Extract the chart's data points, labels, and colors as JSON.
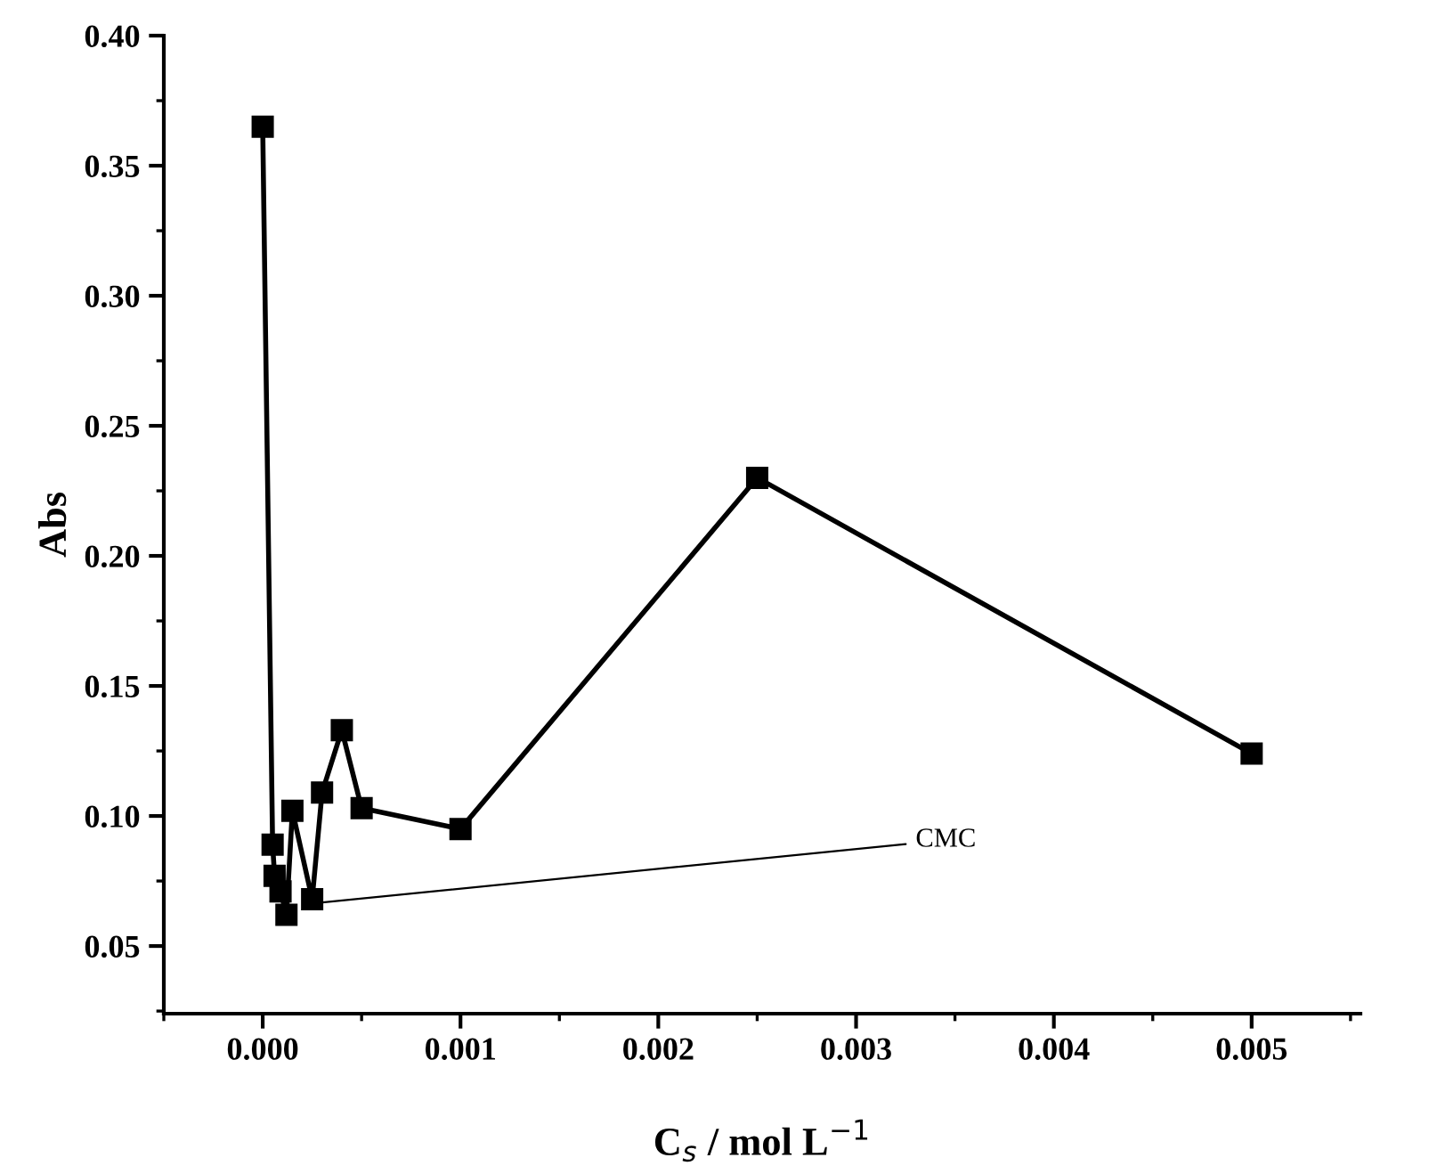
{
  "chart_data": {
    "type": "line",
    "xlabel": "C$_{s}$ / mol L$^{−1}$",
    "ylabel": "Abs",
    "x": [
      0,
      5e-05,
      6e-05,
      9e-05,
      0.00012,
      0.00015,
      0.00025,
      0.0003,
      0.0004,
      0.0005,
      0.001,
      0.0025,
      0.005
    ],
    "series": [
      {
        "color": "#000000",
        "values": [
          0.365,
          0.089,
          0.077,
          0.071,
          0.062,
          0.102,
          0.068,
          0.109,
          0.133,
          0.103,
          0.095,
          0.23,
          0.124
        ]
      }
    ],
    "xlim": [
      -0.0005,
      0.00555
    ],
    "ylim": [
      0.024,
      0.4
    ],
    "xticks": [
      {
        "value": 0,
        "label": "0.000"
      },
      {
        "value": 0.001,
        "label": "0.001"
      },
      {
        "value": 0.002,
        "label": "0.002"
      },
      {
        "value": 0.003,
        "label": "0.003"
      },
      {
        "value": 0.004,
        "label": "0.004"
      },
      {
        "value": 0.005,
        "label": "0.005"
      }
    ],
    "yticks": [
      {
        "value": 0.05,
        "label": "0.05"
      },
      {
        "value": 0.1,
        "label": "0.10"
      },
      {
        "value": 0.15,
        "label": "0.15"
      },
      {
        "value": 0.2,
        "label": "0.20"
      },
      {
        "value": 0.25,
        "label": "0.25"
      },
      {
        "value": 0.3,
        "label": "0.30"
      },
      {
        "value": 0.35,
        "label": "0.35"
      },
      {
        "value": 0.4,
        "label": "0.40"
      }
    ],
    "annotations": [
      {
        "text": "CMC",
        "x": 0.0002,
        "y": 0.066
      }
    ],
    "marker": "square",
    "line_style": "solid",
    "grid": false,
    "legend": false
  }
}
